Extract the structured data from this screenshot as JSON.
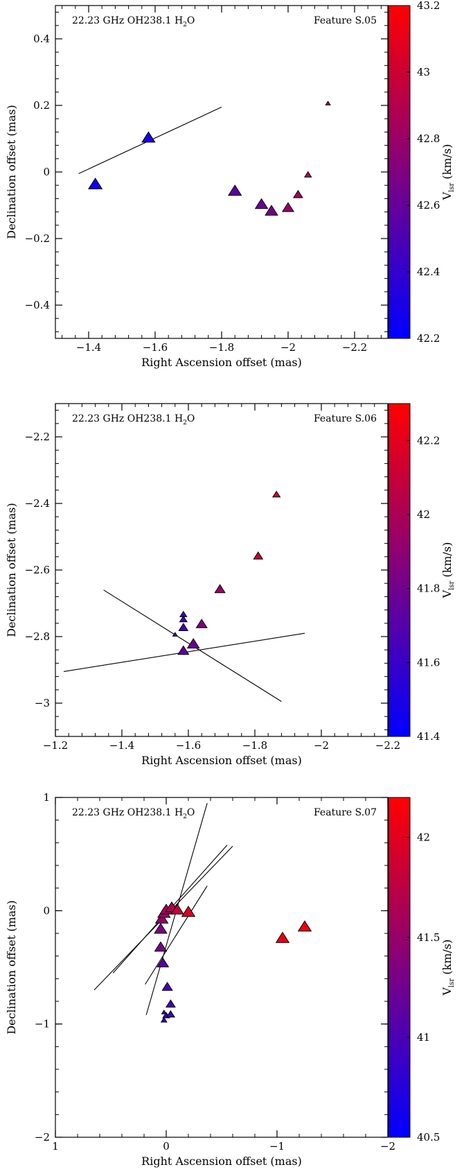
{
  "chart_data": [
    {
      "type": "scatter",
      "annotation_left": "22.23 GHz OH238.1 H",
      "annotation_sub": "2",
      "annotation_tail": "O",
      "annotation_right": "Feature S.05",
      "xlabel": "Right Ascension offset (mas)",
      "ylabel": "Declination offset (mas)",
      "xlim": [
        -1.3,
        -2.3
      ],
      "ylim": [
        -0.5,
        0.5
      ],
      "xticks": [
        -1.4,
        -1.6,
        -1.8,
        -2,
        -2.2
      ],
      "xtick_labels": [
        "−1.4",
        "−1.6",
        "−1.8",
        "−2",
        "−2.2"
      ],
      "yticks": [
        -0.4,
        -0.2,
        0,
        0.2,
        0.4
      ],
      "ytick_labels": [
        "−0.4",
        "−0.2",
        "0",
        "0.2",
        "0.4"
      ],
      "colorbar": {
        "label_main": "V",
        "label_sub": "lsr",
        "label_unit": "(km/s)",
        "range": [
          42.2,
          43.2
        ],
        "ticks": [
          42.2,
          42.4,
          42.6,
          42.8,
          43,
          43.2
        ],
        "tick_labels": [
          "42.2",
          "42.4",
          "42.6",
          "42.8",
          "43",
          "43.2"
        ]
      },
      "points": [
        {
          "x": -1.42,
          "y": -0.04,
          "v": 42.25,
          "size": 1.0
        },
        {
          "x": -1.58,
          "y": 0.1,
          "v": 42.3,
          "size": 0.95
        },
        {
          "x": -1.84,
          "y": -0.06,
          "v": 42.55,
          "size": 0.95
        },
        {
          "x": -1.92,
          "y": -0.1,
          "v": 42.62,
          "size": 0.9
        },
        {
          "x": -1.95,
          "y": -0.12,
          "v": 42.66,
          "size": 0.9
        },
        {
          "x": -2.0,
          "y": -0.11,
          "v": 42.78,
          "size": 0.8
        },
        {
          "x": -2.03,
          "y": -0.07,
          "v": 42.85,
          "size": 0.6
        },
        {
          "x": -2.06,
          "y": -0.01,
          "v": 42.95,
          "size": 0.4
        },
        {
          "x": -2.12,
          "y": 0.205,
          "v": 43.0,
          "size": 0.2
        }
      ],
      "lines": [
        {
          "x1": -1.37,
          "y1": -0.005,
          "x2": -1.8,
          "y2": 0.195
        }
      ]
    },
    {
      "type": "scatter",
      "annotation_left": "22.23 GHz OH238.1 H",
      "annotation_sub": "2",
      "annotation_tail": "O",
      "annotation_right": "Feature S.06",
      "xlabel": "Right Ascension offset (mas)",
      "ylabel": "Declination offset (mas)",
      "xlim": [
        -1.2,
        -2.2
      ],
      "ylim": [
        -3.1,
        -2.1
      ],
      "xticks": [
        -1.2,
        -1.4,
        -1.6,
        -1.8,
        -2,
        -2.2
      ],
      "xtick_labels": [
        "−1.2",
        "−1.4",
        "−1.6",
        "−1.8",
        "−2",
        "−2.2"
      ],
      "yticks": [
        -3,
        -2.8,
        -2.6,
        -2.4,
        -2.2
      ],
      "ytick_labels": [
        "−3",
        "−2.8",
        "−2.6",
        "−2.4",
        "−2.2"
      ],
      "colorbar": {
        "label_main": "V",
        "label_sub": "lsr",
        "label_unit": "(km/s)",
        "range": [
          41.4,
          42.3
        ],
        "ticks": [
          41.4,
          41.6,
          41.8,
          42,
          42.2
        ],
        "tick_labels": [
          "41.4",
          "41.6",
          "41.8",
          "42",
          "42.2"
        ]
      },
      "points": [
        {
          "x": -1.585,
          "y": -2.735,
          "v": 41.6,
          "size": 0.4
        },
        {
          "x": -1.585,
          "y": -2.75,
          "v": 41.62,
          "size": 0.45
        },
        {
          "x": -1.585,
          "y": -2.775,
          "v": 41.63,
          "size": 0.6
        },
        {
          "x": -1.64,
          "y": -2.765,
          "v": 41.85,
          "size": 0.75
        },
        {
          "x": -1.615,
          "y": -2.825,
          "v": 41.78,
          "size": 0.85
        },
        {
          "x": -1.585,
          "y": -2.845,
          "v": 41.72,
          "size": 0.75
        },
        {
          "x": -1.56,
          "y": -2.795,
          "v": 41.7,
          "size": 0.2
        },
        {
          "x": -1.695,
          "y": -2.66,
          "v": 41.95,
          "size": 0.7
        },
        {
          "x": -1.81,
          "y": -2.56,
          "v": 42.1,
          "size": 0.6
        },
        {
          "x": -1.865,
          "y": -2.375,
          "v": 42.15,
          "size": 0.45
        }
      ],
      "lines": [
        {
          "x1": -1.225,
          "y1": -2.905,
          "x2": -1.95,
          "y2": -2.79
        },
        {
          "x1": -1.345,
          "y1": -2.66,
          "x2": -1.88,
          "y2": -2.995
        }
      ]
    },
    {
      "type": "scatter",
      "annotation_left": "22.23 GHz OH238.1 H",
      "annotation_sub": "2",
      "annotation_tail": "O",
      "annotation_right": "Feature S.07",
      "xlabel": "Right Ascension offset (mas)",
      "ylabel": "Declination offset (mas)",
      "xlim": [
        1,
        -2
      ],
      "ylim": [
        -2,
        1
      ],
      "xticks": [
        1,
        0,
        -1,
        -2
      ],
      "xtick_labels": [
        "1",
        "0",
        "−1",
        "−2"
      ],
      "yticks": [
        -2,
        -1,
        0,
        1
      ],
      "ytick_labels": [
        "−2",
        "−1",
        "0",
        "1"
      ],
      "colorbar": {
        "label_main": "V",
        "label_sub": "lsr",
        "label_unit": "(km/s)",
        "range": [
          40.5,
          42.2
        ],
        "ticks": [
          40.5,
          41,
          41.5,
          42
        ],
        "tick_labels": [
          "40.5",
          "41",
          "41.5",
          "42"
        ]
      },
      "points": [
        {
          "x": 0.02,
          "y": -0.97,
          "v": 40.8,
          "size": 0.3
        },
        {
          "x": 0.0,
          "y": -0.93,
          "v": 40.85,
          "size": 0.4
        },
        {
          "x": -0.04,
          "y": -0.92,
          "v": 40.9,
          "size": 0.5
        },
        {
          "x": 0.02,
          "y": -0.9,
          "v": 40.85,
          "size": 0.2
        },
        {
          "x": -0.04,
          "y": -0.83,
          "v": 40.95,
          "size": 0.6
        },
        {
          "x": -0.01,
          "y": -0.68,
          "v": 41.0,
          "size": 0.7
        },
        {
          "x": 0.03,
          "y": -0.47,
          "v": 41.1,
          "size": 0.8
        },
        {
          "x": 0.05,
          "y": -0.33,
          "v": 41.3,
          "size": 0.85
        },
        {
          "x": 0.05,
          "y": -0.17,
          "v": 41.35,
          "size": 0.9
        },
        {
          "x": 0.04,
          "y": -0.08,
          "v": 41.5,
          "size": 0.9
        },
        {
          "x": 0.02,
          "y": -0.03,
          "v": 41.55,
          "size": 0.9
        },
        {
          "x": 0.0,
          "y": 0.0,
          "v": 41.6,
          "size": 0.9
        },
        {
          "x": -0.05,
          "y": 0.02,
          "v": 41.7,
          "size": 0.9
        },
        {
          "x": -0.1,
          "y": 0.0,
          "v": 41.8,
          "size": 0.9
        },
        {
          "x": -0.2,
          "y": -0.02,
          "v": 41.95,
          "size": 0.95
        },
        {
          "x": -1.05,
          "y": -0.25,
          "v": 42.05,
          "size": 0.95
        },
        {
          "x": -1.25,
          "y": -0.15,
          "v": 42.1,
          "size": 0.95
        }
      ],
      "lines": [
        {
          "x1": 0.65,
          "y1": -0.7,
          "x2": -0.6,
          "y2": 0.57
        },
        {
          "x1": 0.48,
          "y1": -0.55,
          "x2": -0.55,
          "y2": 0.58
        },
        {
          "x1": 0.19,
          "y1": -0.65,
          "x2": -0.37,
          "y2": 0.22
        },
        {
          "x1": 0.18,
          "y1": -0.92,
          "x2": -0.37,
          "y2": 0.95
        }
      ]
    }
  ]
}
